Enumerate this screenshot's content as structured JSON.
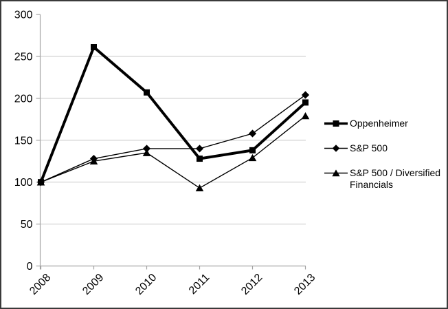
{
  "chart": {
    "colors": {
      "background": "#ffffff",
      "border": "#3a3a3a",
      "gridline": "#c6c6c6",
      "axis": "#a3a3a3",
      "series": "#000000",
      "text": "#000000"
    }
  },
  "chart_data": {
    "type": "line",
    "title": "",
    "xlabel": "",
    "ylabel": "",
    "categories": [
      "2008",
      "2009",
      "2010",
      "2011",
      "2012",
      "2013"
    ],
    "series": [
      {
        "name": "Oppenheimer",
        "marker": "square",
        "line_width": 4,
        "values": [
          100,
          261,
          207,
          128,
          138,
          195
        ]
      },
      {
        "name": "S&P 500",
        "marker": "diamond",
        "line_width": 1.4,
        "values": [
          100,
          128,
          140,
          140,
          158,
          204
        ]
      },
      {
        "name": "S&P 500 / Diversified Financials",
        "marker": "triangle",
        "line_width": 1.4,
        "values": [
          100,
          125,
          135,
          93,
          129,
          179
        ]
      }
    ],
    "ylim": [
      0,
      300
    ],
    "y_tick_step": 50,
    "y_tick_labels": [
      "0",
      "50",
      "100",
      "150",
      "200",
      "250",
      "300"
    ],
    "grid": true,
    "legend_position": "right"
  }
}
